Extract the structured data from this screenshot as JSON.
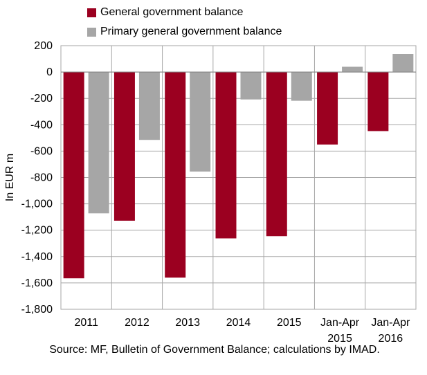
{
  "chart_data": {
    "type": "bar",
    "categories": [
      [
        "2011"
      ],
      [
        "2012"
      ],
      [
        "2013"
      ],
      [
        "2014"
      ],
      [
        "2015"
      ],
      [
        "Jan-Apr",
        "2015"
      ],
      [
        "Jan-Apr",
        "2016"
      ]
    ],
    "series": [
      {
        "name": "General government balance",
        "color": "#9b0020",
        "values": [
          -1565,
          -1128,
          -1560,
          -1262,
          -1245,
          -550,
          -448
        ]
      },
      {
        "name": "Primary general government balance",
        "color": "#a6a6a6",
        "values": [
          -1072,
          -515,
          -755,
          -208,
          -218,
          40,
          137
        ]
      }
    ],
    "ylabel": "In EUR m",
    "ylim": [
      -1800,
      200
    ],
    "yticks": [
      200,
      0,
      -200,
      -400,
      -600,
      -800,
      -1000,
      -1200,
      -1400,
      -1600,
      -1800
    ],
    "ytick_labels": [
      "200",
      "0",
      "-200",
      "-400",
      "-600",
      "-800",
      "-1,000",
      "-1,200",
      "-1,400",
      "-1,600",
      "-1,800"
    ],
    "grid": true,
    "legend_position": "top",
    "source": "Source: MF, Bulletin of Government Balance; calculations by IMAD."
  }
}
